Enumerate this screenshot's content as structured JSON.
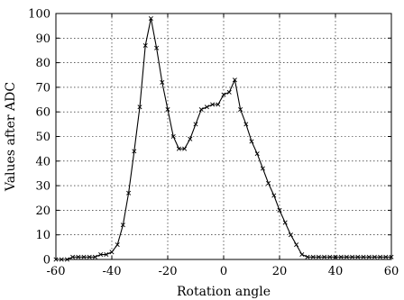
{
  "chart_data": {
    "type": "line",
    "title": "",
    "xlabel": "Rotation angle",
    "ylabel": "Values after ADC",
    "xlim": [
      -60,
      60
    ],
    "ylim": [
      0,
      100
    ],
    "x_ticks": [
      -60,
      -40,
      -20,
      0,
      20,
      40,
      60
    ],
    "y_ticks": [
      0,
      10,
      20,
      30,
      40,
      50,
      60,
      70,
      80,
      90,
      100
    ],
    "grid": true,
    "marker": "x",
    "series": [
      {
        "x": [
          -60,
          -58,
          -56,
          -54,
          -52,
          -50,
          -48,
          -46,
          -44,
          -42,
          -40,
          -38,
          -36,
          -34,
          -32,
          -30,
          -28,
          -26,
          -24,
          -22,
          -20,
          -18,
          -16,
          -14,
          -12,
          -10,
          -8,
          -6,
          -4,
          -2,
          0,
          2,
          4,
          6,
          8,
          10,
          12,
          14,
          16,
          18,
          20,
          22,
          24,
          26,
          28,
          30,
          32,
          34,
          36,
          38,
          40,
          42,
          44,
          46,
          48,
          50,
          52,
          54,
          56,
          58,
          60
        ],
        "y": [
          0,
          0,
          0,
          1,
          1,
          1,
          1,
          1,
          2,
          2,
          3,
          6,
          14,
          27,
          44,
          62,
          87,
          98,
          86,
          72,
          61,
          50,
          45,
          45,
          49,
          55,
          61,
          62,
          63,
          63,
          67,
          68,
          73,
          61,
          55,
          48,
          43,
          37,
          31,
          26,
          20,
          15,
          10,
          6,
          2,
          1,
          1,
          1,
          1,
          1,
          1,
          1,
          1,
          1,
          1,
          1,
          1,
          1,
          1,
          1,
          1
        ]
      }
    ]
  }
}
